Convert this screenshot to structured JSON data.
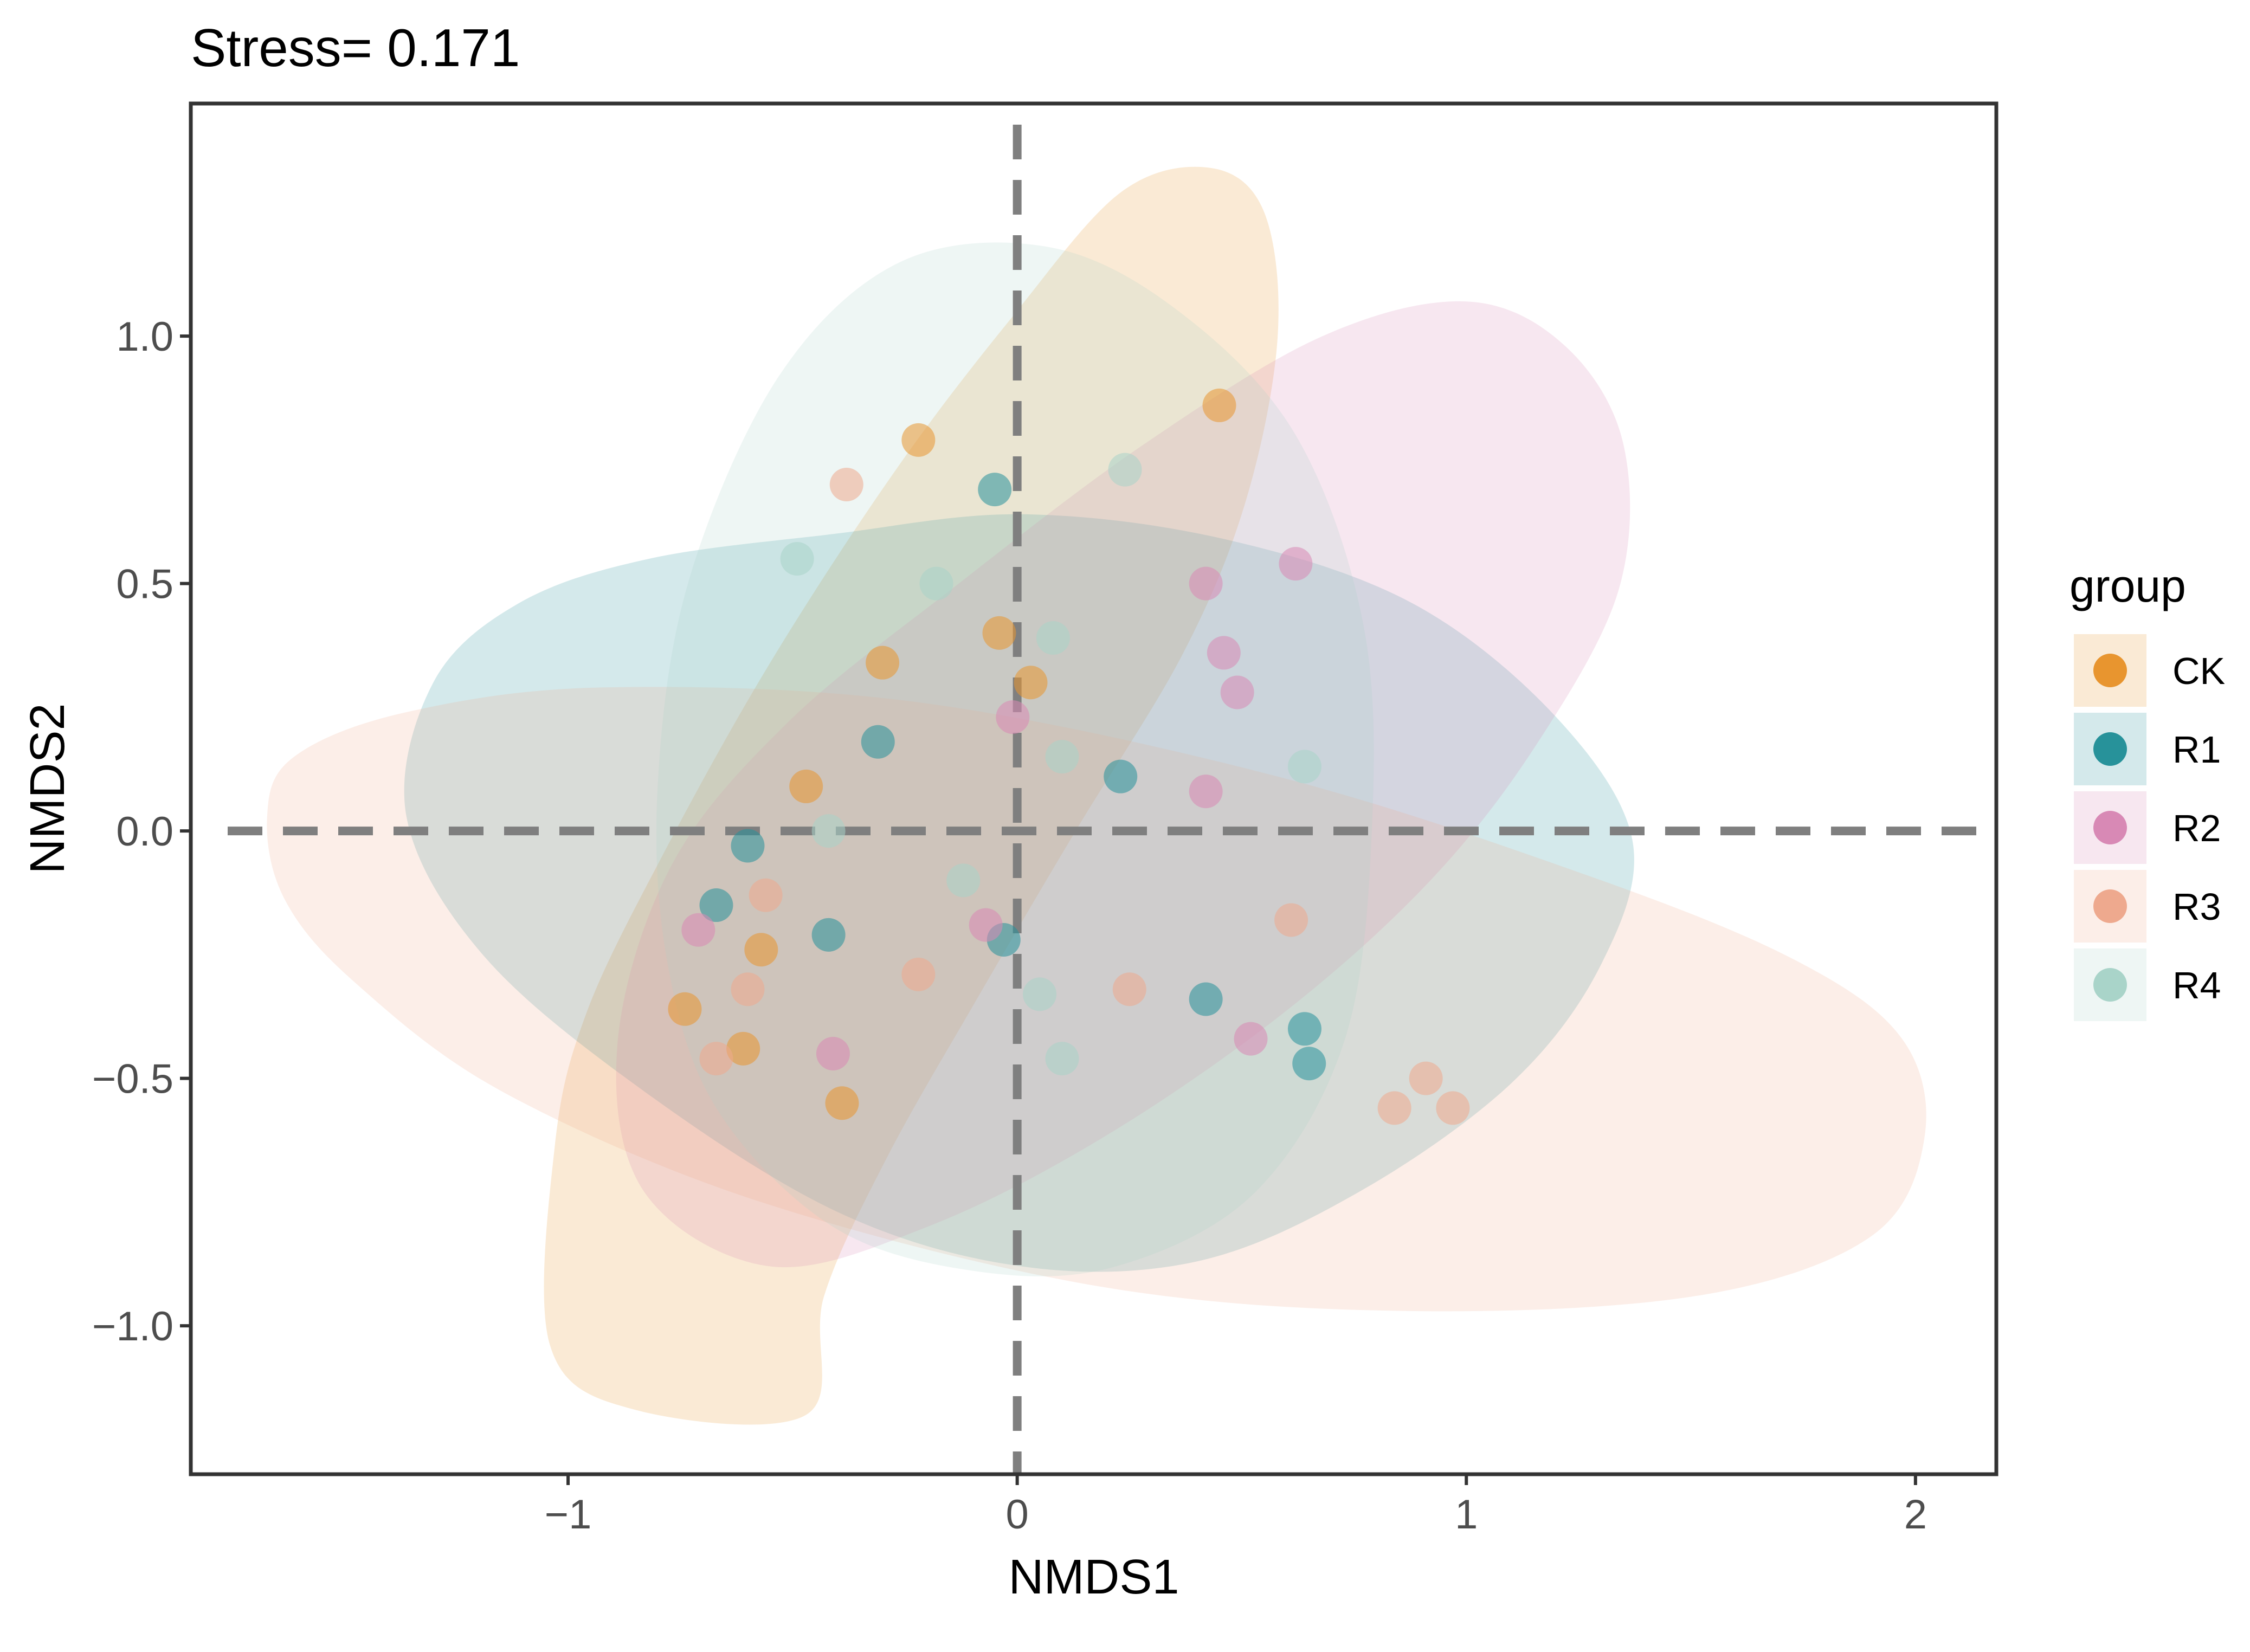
{
  "chart_data": {
    "type": "scatter",
    "title": "Stress= 0.171",
    "xlabel": "NMDS1",
    "ylabel": "NMDS2",
    "xlim": [
      -1.84,
      2.18
    ],
    "ylim": [
      -1.3,
      1.47
    ],
    "x_ticks": [
      -1,
      0,
      1,
      2
    ],
    "x_tick_labels": [
      "−1",
      "0",
      "1",
      "2"
    ],
    "y_ticks": [
      -1.0,
      -0.5,
      0.0,
      0.5,
      1.0
    ],
    "y_tick_labels": [
      "−1.0",
      "−0.5",
      "0.0",
      "0.5",
      "1.0"
    ],
    "grid": false,
    "reference_lines": {
      "x": 0,
      "y": 0,
      "style": "dashed"
    },
    "legend": {
      "title": "group",
      "placement": "right"
    },
    "series": [
      {
        "name": "CK",
        "color": "#E8952F",
        "ellipse": [
          [
            -0.47,
            -1.18
          ],
          [
            -0.85,
            -1.17
          ],
          [
            -1.04,
            -1.04
          ],
          [
            -1.03,
            -0.64
          ],
          [
            -0.96,
            -0.37
          ],
          [
            -0.79,
            -0.05
          ],
          [
            -0.55,
            0.34
          ],
          [
            -0.27,
            0.73
          ],
          [
            -0.01,
            1.04
          ],
          [
            0.23,
            1.29
          ],
          [
            0.43,
            1.34
          ],
          [
            0.55,
            1.25
          ],
          [
            0.58,
            1.0
          ],
          [
            0.51,
            0.67
          ],
          [
            0.37,
            0.36
          ],
          [
            0.13,
            0.0
          ],
          [
            -0.09,
            -0.34
          ],
          [
            -0.29,
            -0.66
          ],
          [
            -0.43,
            -0.94
          ]
        ],
        "points": [
          [
            -0.22,
            0.79
          ],
          [
            0.45,
            0.86
          ],
          [
            -0.04,
            0.4
          ],
          [
            0.03,
            0.3
          ],
          [
            -0.3,
            0.34
          ],
          [
            -0.47,
            0.09
          ],
          [
            -0.57,
            -0.24
          ],
          [
            -0.74,
            -0.36
          ],
          [
            -0.61,
            -0.44
          ],
          [
            -0.39,
            -0.55
          ]
        ]
      },
      {
        "name": "R1",
        "color": "#27929A",
        "ellipse": [
          [
            -0.41,
            0.6
          ],
          [
            0.01,
            0.64
          ],
          [
            0.46,
            0.59
          ],
          [
            0.88,
            0.46
          ],
          [
            1.2,
            0.23
          ],
          [
            1.37,
            -0.02
          ],
          [
            1.3,
            -0.27
          ],
          [
            1.1,
            -0.51
          ],
          [
            0.76,
            -0.73
          ],
          [
            0.4,
            -0.87
          ],
          [
            0.01,
            -0.88
          ],
          [
            -0.4,
            -0.77
          ],
          [
            -0.84,
            -0.52
          ],
          [
            -1.19,
            -0.25
          ],
          [
            -1.36,
            0.03
          ],
          [
            -1.3,
            0.3
          ],
          [
            -1.11,
            0.46
          ],
          [
            -0.82,
            0.55
          ]
        ],
        "points": [
          [
            -0.05,
            0.69
          ],
          [
            -0.31,
            0.18
          ],
          [
            -0.6,
            -0.03
          ],
          [
            -0.67,
            -0.15
          ],
          [
            -0.42,
            -0.21
          ],
          [
            -0.03,
            -0.22
          ],
          [
            0.23,
            0.11
          ],
          [
            0.42,
            -0.34
          ],
          [
            0.64,
            -0.4
          ],
          [
            0.65,
            -0.47
          ]
        ]
      },
      {
        "name": "R2",
        "color": "#D889B5",
        "ellipse": [
          [
            -0.55,
            -0.88
          ],
          [
            -0.83,
            -0.73
          ],
          [
            -0.89,
            -0.43
          ],
          [
            -0.77,
            -0.07
          ],
          [
            -0.51,
            0.22
          ],
          [
            -0.13,
            0.5
          ],
          [
            0.28,
            0.78
          ],
          [
            0.68,
            1.0
          ],
          [
            1.0,
            1.07
          ],
          [
            1.22,
            0.98
          ],
          [
            1.35,
            0.78
          ],
          [
            1.34,
            0.49
          ],
          [
            1.16,
            0.18
          ],
          [
            0.92,
            -0.1
          ],
          [
            0.59,
            -0.37
          ],
          [
            0.19,
            -0.62
          ],
          [
            -0.2,
            -0.8
          ]
        ],
        "points": [
          [
            0.42,
            0.5
          ],
          [
            0.62,
            0.54
          ],
          [
            0.46,
            0.36
          ],
          [
            0.49,
            0.28
          ],
          [
            -0.01,
            0.23
          ],
          [
            0.42,
            0.08
          ],
          [
            -0.71,
            -0.2
          ],
          [
            -0.07,
            -0.19
          ],
          [
            -0.41,
            -0.45
          ],
          [
            0.52,
            -0.42
          ]
        ]
      },
      {
        "name": "R3",
        "color": "#EEA98E",
        "ellipse": [
          [
            -1.67,
            0.03
          ],
          [
            -1.61,
            0.15
          ],
          [
            -1.36,
            0.24
          ],
          [
            -0.92,
            0.29
          ],
          [
            -0.22,
            0.26
          ],
          [
            0.58,
            0.11
          ],
          [
            1.27,
            -0.09
          ],
          [
            1.73,
            -0.26
          ],
          [
            1.97,
            -0.42
          ],
          [
            2.02,
            -0.62
          ],
          [
            1.9,
            -0.82
          ],
          [
            1.51,
            -0.94
          ],
          [
            0.86,
            -0.97
          ],
          [
            0.18,
            -0.92
          ],
          [
            -0.57,
            -0.75
          ],
          [
            -1.14,
            -0.53
          ],
          [
            -1.47,
            -0.31
          ],
          [
            -1.63,
            -0.14
          ]
        ],
        "points": [
          [
            -0.38,
            0.7
          ],
          [
            -0.56,
            -0.13
          ],
          [
            -0.6,
            -0.32
          ],
          [
            -0.67,
            -0.46
          ],
          [
            -0.22,
            -0.29
          ],
          [
            0.25,
            -0.32
          ],
          [
            0.61,
            -0.18
          ],
          [
            0.91,
            -0.5
          ],
          [
            0.84,
            -0.56
          ],
          [
            0.97,
            -0.56
          ]
        ]
      },
      {
        "name": "R4",
        "color": "#A9D4C9",
        "ellipse": [
          [
            -0.09,
            -0.89
          ],
          [
            -0.41,
            -0.8
          ],
          [
            -0.67,
            -0.56
          ],
          [
            -0.78,
            -0.26
          ],
          [
            -0.8,
            0.1
          ],
          [
            -0.73,
            0.51
          ],
          [
            -0.53,
            0.92
          ],
          [
            -0.26,
            1.15
          ],
          [
            0.07,
            1.18
          ],
          [
            0.36,
            1.05
          ],
          [
            0.62,
            0.8
          ],
          [
            0.77,
            0.42
          ],
          [
            0.79,
            0.01
          ],
          [
            0.73,
            -0.42
          ],
          [
            0.53,
            -0.73
          ],
          [
            0.22,
            -0.88
          ]
        ],
        "points": [
          [
            0.24,
            0.73
          ],
          [
            -0.49,
            0.55
          ],
          [
            -0.18,
            0.5
          ],
          [
            0.08,
            0.39
          ],
          [
            0.1,
            0.15
          ],
          [
            0.64,
            0.13
          ],
          [
            -0.42,
            0.0
          ],
          [
            -0.12,
            -0.1
          ],
          [
            0.05,
            -0.33
          ],
          [
            0.1,
            -0.46
          ]
        ]
      }
    ]
  }
}
